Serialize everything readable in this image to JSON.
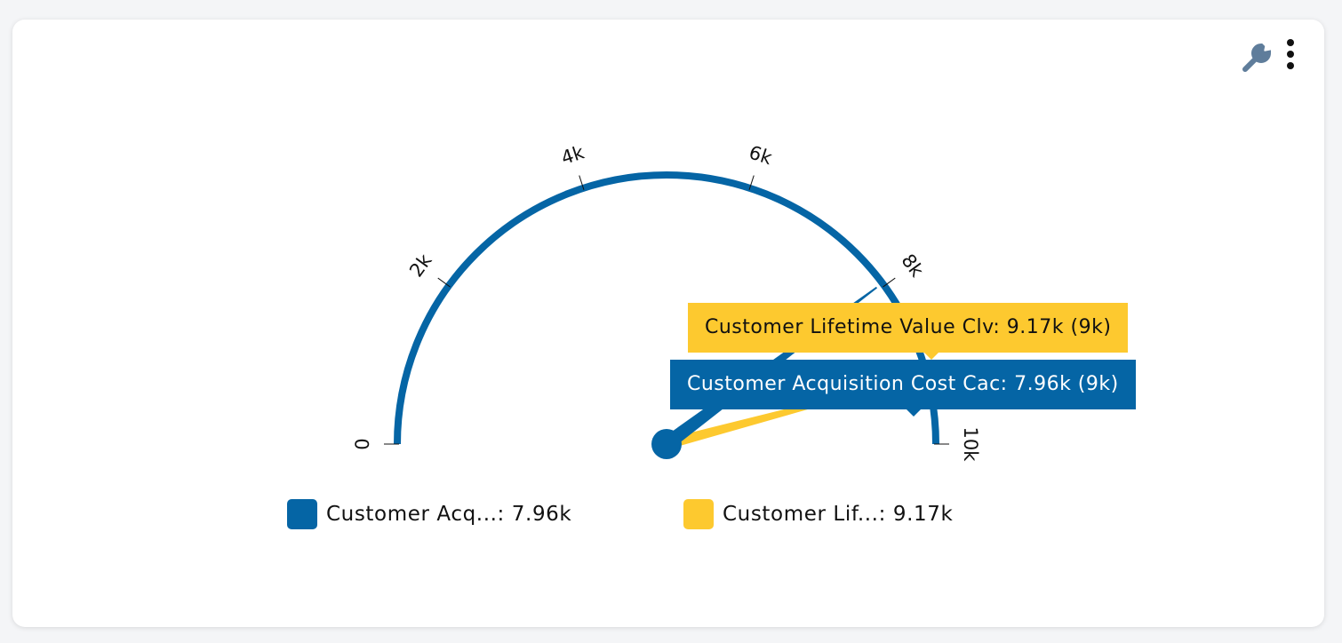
{
  "chart_data": {
    "type": "gauge",
    "ylim": [
      0,
      10000
    ],
    "yticks": [
      0,
      {
        "value": 2000,
        "label": "2k"
      },
      {
        "value": 4000,
        "label": "4k"
      },
      {
        "value": 6000,
        "label": "6k"
      },
      {
        "value": 8000,
        "label": "8k"
      },
      {
        "value": 10000,
        "label": "10k"
      }
    ],
    "series": [
      {
        "color": "#0565a5",
        "values": [
          7960
        ],
        "value_labels": [
          "7.96k"
        ],
        "legend_label": "Customer Acq...: 7.96k",
        "tooltip": "Customer Acquisition Cost Cac: 7.96k (9k)"
      },
      {
        "color": "#fdc92f",
        "values": [
          9170
        ],
        "value_labels": [
          "9.17k"
        ],
        "legend_label": "Customer Lif...: 9.17k",
        "tooltip": "Customer Lifetime Value Clv: 9.17k (9k)"
      }
    ]
  }
}
